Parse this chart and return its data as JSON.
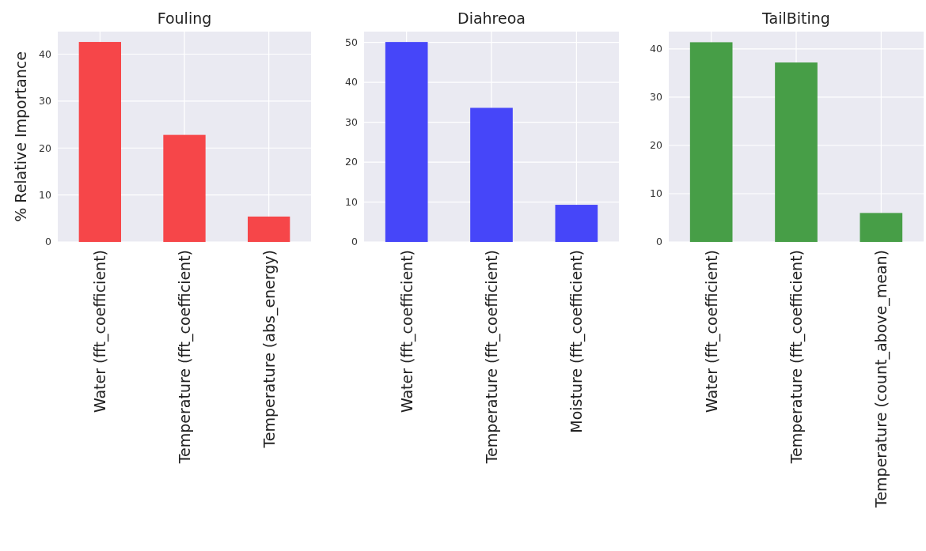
{
  "chart_data": [
    {
      "type": "bar",
      "title": "Fouling",
      "ylabel": "% Relative Importance",
      "categories": [
        "Water (fft_coefficient)",
        "Temperature (fft_coefficient)",
        "Temperature (abs_energy)"
      ],
      "values": [
        42.6,
        22.8,
        5.4
      ],
      "color": "#f64649",
      "ylim": [
        0,
        44.8
      ],
      "yticks": [
        0,
        10,
        20,
        30,
        40
      ],
      "grid": true
    },
    {
      "type": "bar",
      "title": "Diahreoa",
      "categories": [
        "Water (fft_coefficient)",
        "Temperature (fft_coefficient)",
        "Moisture (fft_coefficient)"
      ],
      "values": [
        50.1,
        33.6,
        9.3
      ],
      "color": "#4646f9",
      "ylim": [
        0,
        52.7
      ],
      "yticks": [
        0,
        10,
        20,
        30,
        40,
        50
      ],
      "grid": true
    },
    {
      "type": "bar",
      "title": "TailBiting",
      "categories": [
        "Water (fft_coefficient)",
        "Temperature (fft_coefficient)",
        "Temperature (count_above_mean)"
      ],
      "values": [
        41.4,
        37.2,
        6.0
      ],
      "color": "#479e47",
      "ylim": [
        0,
        43.6
      ],
      "yticks": [
        0,
        10,
        20,
        30,
        40
      ],
      "grid": true
    }
  ]
}
